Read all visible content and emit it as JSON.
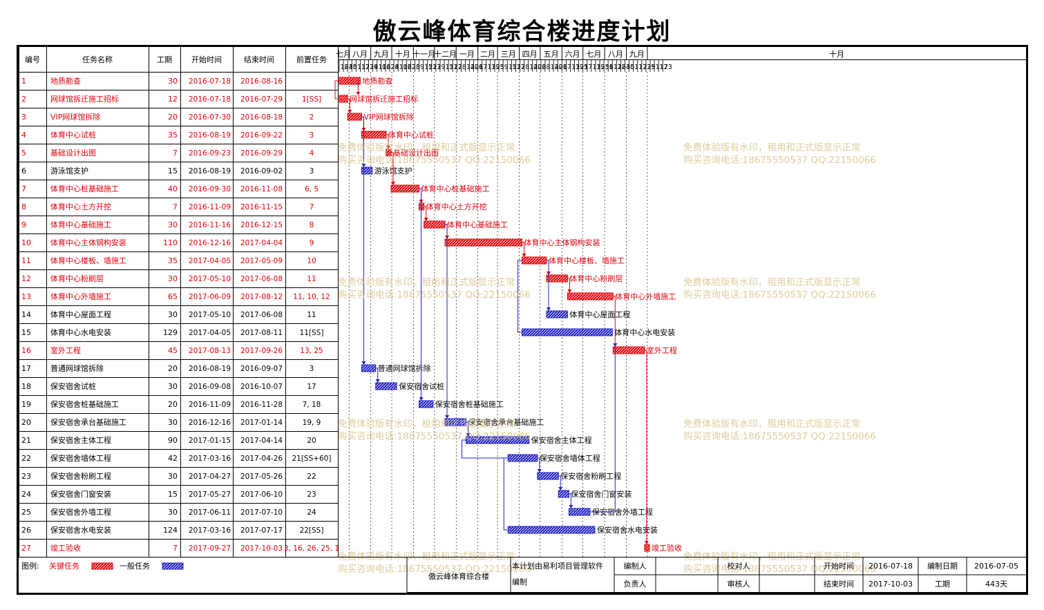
{
  "title": "傲云峰体育综合楼进度计划",
  "headers": {
    "id": "编号",
    "name": "任务名称",
    "dur": "工期",
    "start": "开始时间",
    "end": "结束时间",
    "pred": "前置任务"
  },
  "months": [
    "七月",
    "八月",
    "九月",
    "十月",
    "十一月",
    "十二月",
    "一月",
    "二月",
    "三月",
    "四月",
    "五月",
    "六月",
    "七月",
    "八月",
    "九月",
    "十月"
  ],
  "days": [
    "18",
    "24",
    "30",
    "5",
    "11",
    "17",
    "23",
    "29",
    "4",
    "10",
    "16",
    "22",
    "28",
    "4",
    "10",
    "16",
    "22",
    "28",
    "3",
    "9",
    "15",
    "21",
    "27",
    "3",
    "9",
    "15",
    "21",
    "27",
    "2",
    "8",
    "14",
    "20",
    "26",
    "1",
    "7",
    "13",
    "19",
    "25",
    "3",
    "9",
    "15",
    "21",
    "27",
    "2",
    "8",
    "14",
    "20",
    "26",
    "2",
    "8",
    "14",
    "20",
    "26",
    "1",
    "7",
    "13",
    "19",
    "25",
    "1",
    "7",
    "13",
    "19",
    "25",
    "31",
    "6",
    "12",
    "18",
    "24",
    "30",
    "5",
    "11",
    "17",
    "23",
    "29",
    "5",
    "11",
    "17",
    "23"
  ],
  "tasks": [
    {
      "id": "1",
      "name": "地质勘查",
      "dur": "30",
      "start": "2016-07-18",
      "end": "2016-08-16",
      "pred": "",
      "critical": true
    },
    {
      "id": "2",
      "name": "网球馆拆迁施工招标",
      "dur": "12",
      "start": "2016-07-18",
      "end": "2016-07-29",
      "pred": "1[SS]",
      "critical": true
    },
    {
      "id": "3",
      "name": "VIP网球馆拆除",
      "dur": "20",
      "start": "2016-07-30",
      "end": "2016-08-18",
      "pred": "2",
      "critical": true
    },
    {
      "id": "4",
      "name": "体育中心试桩",
      "dur": "35",
      "start": "2016-08-19",
      "end": "2016-09-22",
      "pred": "3",
      "critical": true
    },
    {
      "id": "5",
      "name": "基础设计出图",
      "dur": "7",
      "start": "2016-09-23",
      "end": "2016-09-29",
      "pred": "4",
      "critical": true
    },
    {
      "id": "6",
      "name": "游泳馆支护",
      "dur": "15",
      "start": "2016-08-19",
      "end": "2016-09-02",
      "pred": "3",
      "critical": false
    },
    {
      "id": "7",
      "name": "体育中心桩基础施工",
      "dur": "40",
      "start": "2016-09-30",
      "end": "2016-11-08",
      "pred": "6, 5",
      "critical": true
    },
    {
      "id": "8",
      "name": "体育中心土方开挖",
      "dur": "7",
      "start": "2016-11-09",
      "end": "2016-11-15",
      "pred": "7",
      "critical": true
    },
    {
      "id": "9",
      "name": "体育中心基础施工",
      "dur": "30",
      "start": "2016-11-16",
      "end": "2016-12-15",
      "pred": "8",
      "critical": true
    },
    {
      "id": "10",
      "name": "体育中心主体钢构安装",
      "dur": "110",
      "start": "2016-12-16",
      "end": "2017-04-04",
      "pred": "9",
      "critical": true
    },
    {
      "id": "11",
      "name": "体育中心楼板、墙施工",
      "dur": "35",
      "start": "2017-04-05",
      "end": "2017-05-09",
      "pred": "10",
      "critical": true
    },
    {
      "id": "12",
      "name": "体育中心粉刷层",
      "dur": "30",
      "start": "2017-05-10",
      "end": "2017-06-08",
      "pred": "11",
      "critical": true
    },
    {
      "id": "13",
      "name": "体育中心外墙施工",
      "dur": "65",
      "start": "2017-06-09",
      "end": "2017-08-12",
      "pred": "11, 10, 12",
      "critical": true
    },
    {
      "id": "14",
      "name": "体育中心屋面工程",
      "dur": "30",
      "start": "2017-05-10",
      "end": "2017-06-08",
      "pred": "11",
      "critical": false
    },
    {
      "id": "15",
      "name": "体育中心水电安装",
      "dur": "129",
      "start": "2017-04-05",
      "end": "2017-08-11",
      "pred": "11[SS]",
      "critical": false
    },
    {
      "id": "16",
      "name": "室外工程",
      "dur": "45",
      "start": "2017-08-13",
      "end": "2017-09-26",
      "pred": "13, 25",
      "critical": true
    },
    {
      "id": "17",
      "name": "普通网球馆拆除",
      "dur": "20",
      "start": "2016-08-19",
      "end": "2016-09-07",
      "pred": "3",
      "critical": false
    },
    {
      "id": "18",
      "name": "保安宿舍试桩",
      "dur": "30",
      "start": "2016-09-08",
      "end": "2016-10-07",
      "pred": "17",
      "critical": false
    },
    {
      "id": "19",
      "name": "保安宿舍桩基础施工",
      "dur": "20",
      "start": "2016-11-09",
      "end": "2016-11-28",
      "pred": "7, 18",
      "critical": false
    },
    {
      "id": "20",
      "name": "保安宿舍承台基础施工",
      "dur": "30",
      "start": "2016-12-16",
      "end": "2017-01-14",
      "pred": "19, 9",
      "critical": false
    },
    {
      "id": "21",
      "name": "保安宿舍主体工程",
      "dur": "90",
      "start": "2017-01-15",
      "end": "2017-04-14",
      "pred": "20",
      "critical": false
    },
    {
      "id": "22",
      "name": "保安宿舍墙体工程",
      "dur": "42",
      "start": "2017-03-16",
      "end": "2017-04-26",
      "pred": "21[SS+60]",
      "critical": false
    },
    {
      "id": "23",
      "name": "保安宿舍粉刷工程",
      "dur": "30",
      "start": "2017-04-27",
      "end": "2017-05-26",
      "pred": "22",
      "critical": false
    },
    {
      "id": "24",
      "name": "保安宿舍门窗安装",
      "dur": "15",
      "start": "2017-05-27",
      "end": "2017-06-10",
      "pred": "23",
      "critical": false
    },
    {
      "id": "25",
      "name": "保安宿舍外墙工程",
      "dur": "30",
      "start": "2017-06-11",
      "end": "2017-07-10",
      "pred": "24",
      "critical": false
    },
    {
      "id": "26",
      "name": "保安宿舍水电安装",
      "dur": "124",
      "start": "2017-03-16",
      "end": "2017-07-17",
      "pred": "22[SS]",
      "critical": false
    },
    {
      "id": "27",
      "name": "竣工验收",
      "dur": "7",
      "start": "2017-09-27",
      "end": "2017-10-03",
      "pred": "3, 16, 26, 25, 1",
      "critical": true
    }
  ],
  "legend": {
    "label": "图例:",
    "critical": "关键任务",
    "normal": "一般任务"
  },
  "footer": {
    "project": "傲云峰体育综合楼",
    "software": "本计划由易利项目管理软件编制",
    "compiler": "编制人",
    "owner": "负责人",
    "checker": "校对人",
    "reviewer": "审核人",
    "start_label": "开始时间",
    "start": "2016-07-18",
    "end_label": "结束时间",
    "end": "2017-10-03",
    "date_label": "编制日期",
    "date": "2016-07-05",
    "dur_label": "工期",
    "dur": "443天"
  },
  "watermark": {
    "line1": "免费体验版有水印，租用和正式版显示正常",
    "line2": "购买咨询电话:18675550537 QQ:22150066"
  },
  "colors": {
    "critical": "#e8000a",
    "normal": "#2020c8",
    "grid": "#000000"
  }
}
